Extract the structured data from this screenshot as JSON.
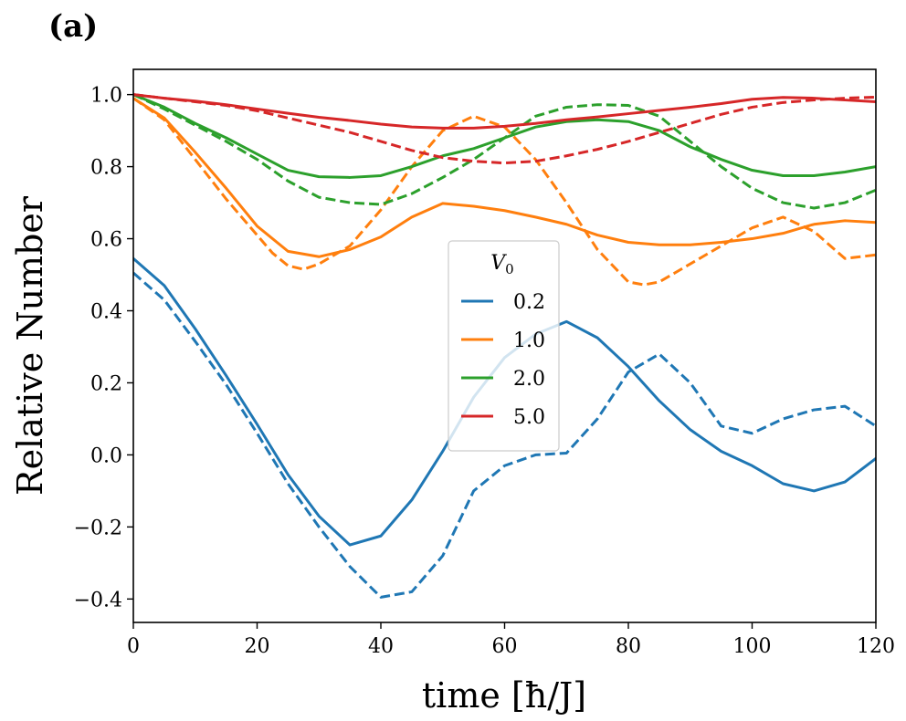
{
  "panel_label": "(a)",
  "chart_data": {
    "type": "line",
    "title": "",
    "xlabel": "time [ħ/J]",
    "ylabel": "Relative Number",
    "xlim": [
      0,
      120
    ],
    "ylim": [
      -0.465,
      1.07
    ],
    "xticks": [
      0,
      20,
      40,
      60,
      80,
      100,
      120
    ],
    "xtick_labels": [
      "0",
      "20",
      "40",
      "60",
      "80",
      "100",
      "120"
    ],
    "yticks": [
      -0.4,
      -0.2,
      0.0,
      0.2,
      0.4,
      0.6,
      0.8,
      1.0
    ],
    "ytick_labels": [
      "−0.4",
      "−0.2",
      "0.0",
      "0.2",
      "0.4",
      "0.6",
      "0.8",
      "1.0"
    ],
    "grid": false,
    "legend": {
      "title_main": "V",
      "title_sub": "0",
      "location": "center",
      "entries": [
        "0.2",
        "1.0",
        "2.0",
        "5.0"
      ]
    },
    "series": [
      {
        "name": "0.2",
        "color": "#1f77b4",
        "style": "solid",
        "x": [
          0,
          5,
          10,
          15,
          20,
          25,
          30,
          35,
          40,
          45,
          50,
          55,
          60,
          65,
          70,
          75,
          80,
          85,
          90,
          95,
          100,
          105,
          110,
          115,
          120
        ],
        "y": [
          0.545,
          0.47,
          0.35,
          0.22,
          0.085,
          -0.055,
          -0.17,
          -0.25,
          -0.225,
          -0.125,
          0.01,
          0.16,
          0.27,
          0.335,
          0.37,
          0.325,
          0.245,
          0.15,
          0.07,
          0.01,
          -0.03,
          -0.08,
          -0.1,
          -0.075,
          -0.01
        ]
      },
      {
        "name": "0.2",
        "color": "#1f77b4",
        "style": "dashed",
        "x": [
          0,
          5,
          10,
          15,
          20,
          25,
          30,
          35,
          40,
          45,
          50,
          55,
          60,
          65,
          70,
          75,
          80,
          85,
          90,
          95,
          100,
          105,
          110,
          115,
          120
        ],
        "y": [
          0.505,
          0.43,
          0.315,
          0.195,
          0.06,
          -0.08,
          -0.2,
          -0.31,
          -0.395,
          -0.38,
          -0.28,
          -0.1,
          -0.03,
          0.0,
          0.005,
          0.1,
          0.23,
          0.28,
          0.2,
          0.08,
          0.06,
          0.1,
          0.125,
          0.135,
          0.08
        ]
      },
      {
        "name": "1.0",
        "color": "#ff7f0e",
        "style": "solid",
        "x": [
          0,
          5,
          10,
          15,
          20,
          25,
          30,
          35,
          40,
          45,
          50,
          55,
          60,
          65,
          70,
          75,
          80,
          85,
          90,
          95,
          100,
          105,
          110,
          115,
          120
        ],
        "y": [
          0.99,
          0.935,
          0.84,
          0.74,
          0.635,
          0.565,
          0.55,
          0.57,
          0.605,
          0.66,
          0.698,
          0.69,
          0.678,
          0.66,
          0.64,
          0.61,
          0.59,
          0.583,
          0.583,
          0.59,
          0.6,
          0.615,
          0.64,
          0.65,
          0.645
        ]
      },
      {
        "name": "1.0",
        "color": "#ff7f0e",
        "style": "dashed",
        "x": [
          0,
          5,
          10,
          15,
          20,
          22.5,
          25,
          27.5,
          30,
          35,
          40,
          45,
          50,
          55,
          60,
          65,
          70,
          75,
          80,
          82.5,
          85,
          90,
          95,
          100,
          105,
          110,
          115,
          120
        ],
        "y": [
          0.99,
          0.93,
          0.82,
          0.71,
          0.61,
          0.56,
          0.525,
          0.515,
          0.53,
          0.58,
          0.68,
          0.8,
          0.9,
          0.94,
          0.91,
          0.82,
          0.7,
          0.57,
          0.48,
          0.472,
          0.48,
          0.53,
          0.58,
          0.63,
          0.66,
          0.62,
          0.545,
          0.555
        ]
      },
      {
        "name": "2.0",
        "color": "#2ca02c",
        "style": "solid",
        "x": [
          0,
          5,
          10,
          15,
          20,
          25,
          30,
          35,
          40,
          45,
          50,
          55,
          60,
          65,
          70,
          75,
          80,
          85,
          90,
          95,
          100,
          105,
          110,
          115,
          120
        ],
        "y": [
          1.0,
          0.965,
          0.92,
          0.88,
          0.835,
          0.79,
          0.772,
          0.77,
          0.775,
          0.8,
          0.83,
          0.85,
          0.88,
          0.91,
          0.925,
          0.93,
          0.925,
          0.9,
          0.855,
          0.82,
          0.79,
          0.775,
          0.775,
          0.785,
          0.8
        ]
      },
      {
        "name": "2.0",
        "color": "#2ca02c",
        "style": "dashed",
        "x": [
          0,
          5,
          10,
          15,
          20,
          25,
          30,
          35,
          40,
          45,
          50,
          55,
          60,
          65,
          70,
          75,
          80,
          85,
          90,
          95,
          100,
          105,
          110,
          115,
          120
        ],
        "y": [
          1.0,
          0.96,
          0.915,
          0.87,
          0.82,
          0.76,
          0.715,
          0.7,
          0.695,
          0.725,
          0.77,
          0.82,
          0.88,
          0.94,
          0.965,
          0.972,
          0.97,
          0.94,
          0.87,
          0.8,
          0.74,
          0.7,
          0.685,
          0.7,
          0.735
        ]
      },
      {
        "name": "5.0",
        "color": "#d62728",
        "style": "solid",
        "x": [
          0,
          5,
          10,
          15,
          20,
          25,
          30,
          35,
          40,
          45,
          50,
          55,
          60,
          65,
          70,
          75,
          80,
          85,
          90,
          95,
          100,
          105,
          110,
          115,
          120
        ],
        "y": [
          1.0,
          0.99,
          0.982,
          0.972,
          0.96,
          0.948,
          0.937,
          0.928,
          0.918,
          0.91,
          0.907,
          0.907,
          0.912,
          0.92,
          0.93,
          0.938,
          0.947,
          0.956,
          0.965,
          0.975,
          0.987,
          0.992,
          0.99,
          0.985,
          0.98
        ]
      },
      {
        "name": "5.0",
        "color": "#d62728",
        "style": "dashed",
        "x": [
          0,
          5,
          10,
          15,
          20,
          25,
          30,
          35,
          40,
          45,
          50,
          55,
          60,
          65,
          70,
          75,
          80,
          85,
          90,
          95,
          100,
          105,
          110,
          115,
          120
        ],
        "y": [
          1.0,
          0.99,
          0.98,
          0.97,
          0.955,
          0.935,
          0.915,
          0.895,
          0.87,
          0.845,
          0.825,
          0.815,
          0.81,
          0.815,
          0.83,
          0.848,
          0.87,
          0.895,
          0.92,
          0.945,
          0.965,
          0.978,
          0.985,
          0.99,
          0.993
        ]
      }
    ]
  }
}
